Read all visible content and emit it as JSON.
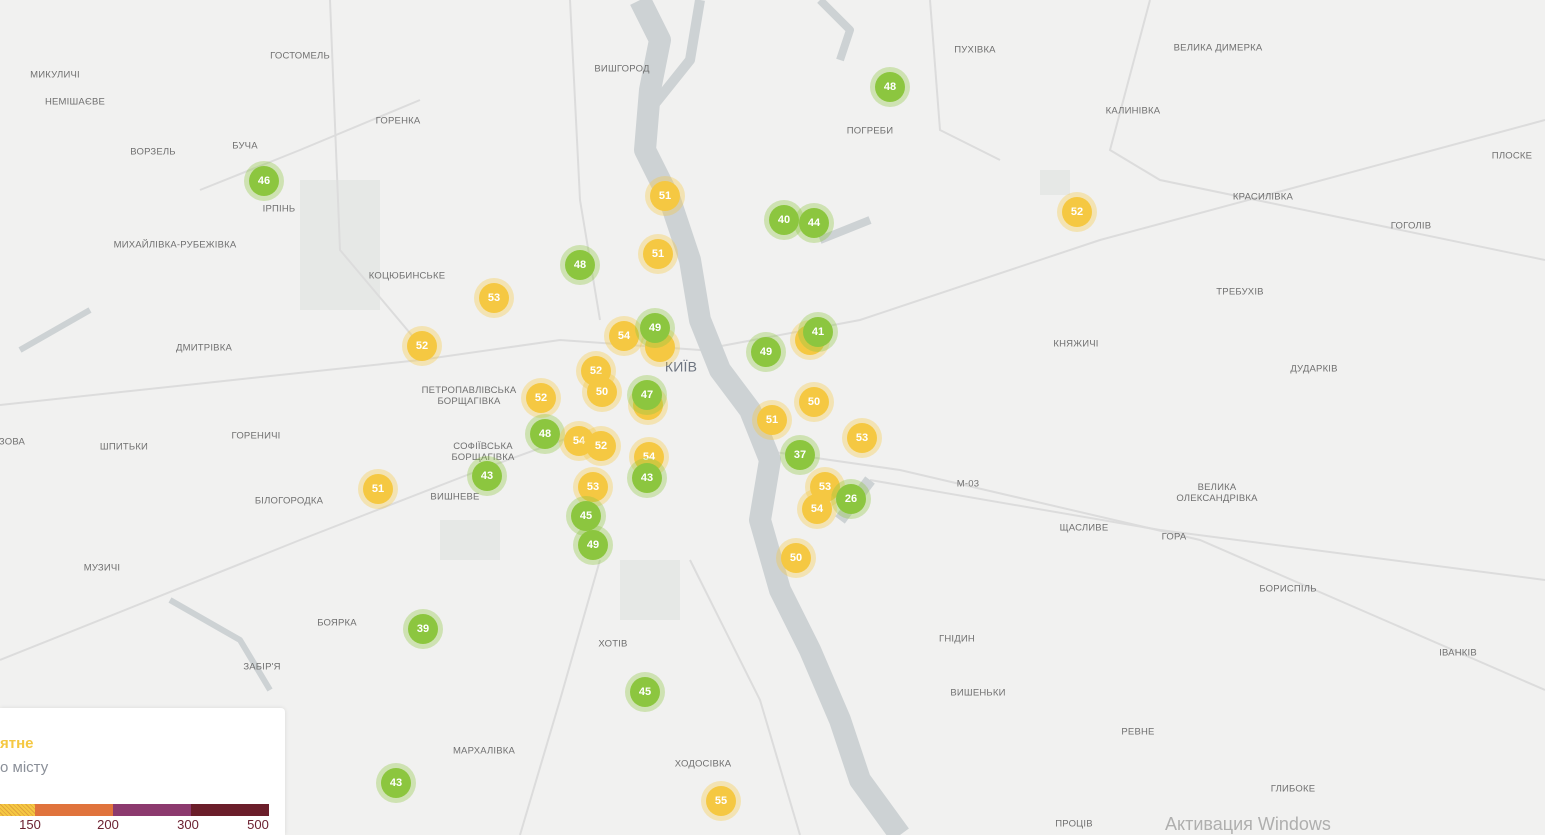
{
  "map": {
    "city_label": "КИЇВ",
    "places": [
      "ГОСТОМЕЛЬ",
      "МИКУЛИЧІ",
      "НЕМІШАЄВЕ",
      "ВИШГОРОД",
      "ГОРЕНКА",
      "БУЧА",
      "ВОРЗЕЛЬ",
      "ІРПІНЬ",
      "МИХАЙЛІВКА-РУБЕЖІВКА",
      "КОЦЮБИНСЬКЕ",
      "ДМИТРІВКА",
      "ПЕТРОПАВЛІВСЬКА БОРЩАГІВКА",
      "ГОРЕНИЧІ",
      "ШПИТЬКИ",
      "ЗОВА",
      "СОФІЇВСЬКА БОРЩАГІВКА",
      "БІЛОГОРОДКА",
      "ВИШНЕВЕ",
      "МУЗИЧІ",
      "БОЯРКА",
      "ЗАБІР'Я",
      "ХОТІВ",
      "МАРХАЛІВКА",
      "ХОДОСІВКА",
      "ПУХІВКА",
      "ПОГРЕБИ",
      "ВЕЛИКА ДИМЕРКА",
      "КАЛИНІВКА",
      "ПЛОСКЕ",
      "КРАСИЛІВКА",
      "ГОГОЛІВ",
      "ТРЕБУХІВ",
      "КНЯЖИЧІ",
      "ДУДАРКІВ",
      "ВЕЛИКА ОЛЕКСАНДРІВКА",
      "ЩАСЛИВЕ",
      "ГОРА",
      "М-03",
      "БОРИСПІЛЬ",
      "ГНІДИН",
      "ВИШЕНЬКИ",
      "ІВАНКІВ",
      "РЕВНЕ",
      "ГЛИБОКЕ",
      "ПРОЦІВ"
    ],
    "markers": [
      {
        "value": "46",
        "level": "good"
      },
      {
        "value": "48",
        "level": "good"
      },
      {
        "value": "51",
        "level": "moderate"
      },
      {
        "value": "40",
        "level": "good"
      },
      {
        "value": "44",
        "level": "good"
      },
      {
        "value": "51",
        "level": "moderate"
      },
      {
        "value": "48",
        "level": "good"
      },
      {
        "value": "52",
        "level": "moderate"
      },
      {
        "value": "53",
        "level": "moderate"
      },
      {
        "value": "52",
        "level": "moderate"
      },
      {
        "value": "54",
        "level": "moderate"
      },
      {
        "value": "49",
        "level": "good"
      },
      {
        "value": "41",
        "level": "good"
      },
      {
        "value": "49",
        "level": "good"
      },
      {
        "value": "52",
        "level": "moderate"
      },
      {
        "value": "50",
        "level": "moderate"
      },
      {
        "value": "47",
        "level": "good"
      },
      {
        "value": "52",
        "level": "moderate"
      },
      {
        "value": "50",
        "level": "moderate"
      },
      {
        "value": "51",
        "level": "moderate"
      },
      {
        "value": "48",
        "level": "good"
      },
      {
        "value": "54",
        "level": "moderate"
      },
      {
        "value": "52",
        "level": "moderate"
      },
      {
        "value": "53",
        "level": "moderate"
      },
      {
        "value": "37",
        "level": "good"
      },
      {
        "value": "54",
        "level": "moderate"
      },
      {
        "value": "43",
        "level": "good"
      },
      {
        "value": "43",
        "level": "good"
      },
      {
        "value": "51",
        "level": "moderate"
      },
      {
        "value": "53",
        "level": "moderate"
      },
      {
        "value": "53",
        "level": "moderate"
      },
      {
        "value": "26",
        "level": "good"
      },
      {
        "value": "54",
        "level": "moderate"
      },
      {
        "value": "45",
        "level": "good"
      },
      {
        "value": "49",
        "level": "good"
      },
      {
        "value": "50",
        "level": "moderate"
      },
      {
        "value": "39",
        "level": "good"
      },
      {
        "value": "45",
        "level": "good"
      },
      {
        "value": "43",
        "level": "good"
      },
      {
        "value": "55",
        "level": "moderate"
      }
    ]
  },
  "legend": {
    "title": "ятне",
    "subtitle": "о місту",
    "ticks": [
      "150",
      "200",
      "300",
      "500"
    ],
    "colors": {
      "moderate": "#f5c842",
      "unhealthy_sensitive": "#e0733c",
      "very_unhealthy": "#8c3a6e",
      "hazardous": "#6b1e2a",
      "good": "#8cc63f"
    }
  },
  "watermark": "Активация Windows"
}
